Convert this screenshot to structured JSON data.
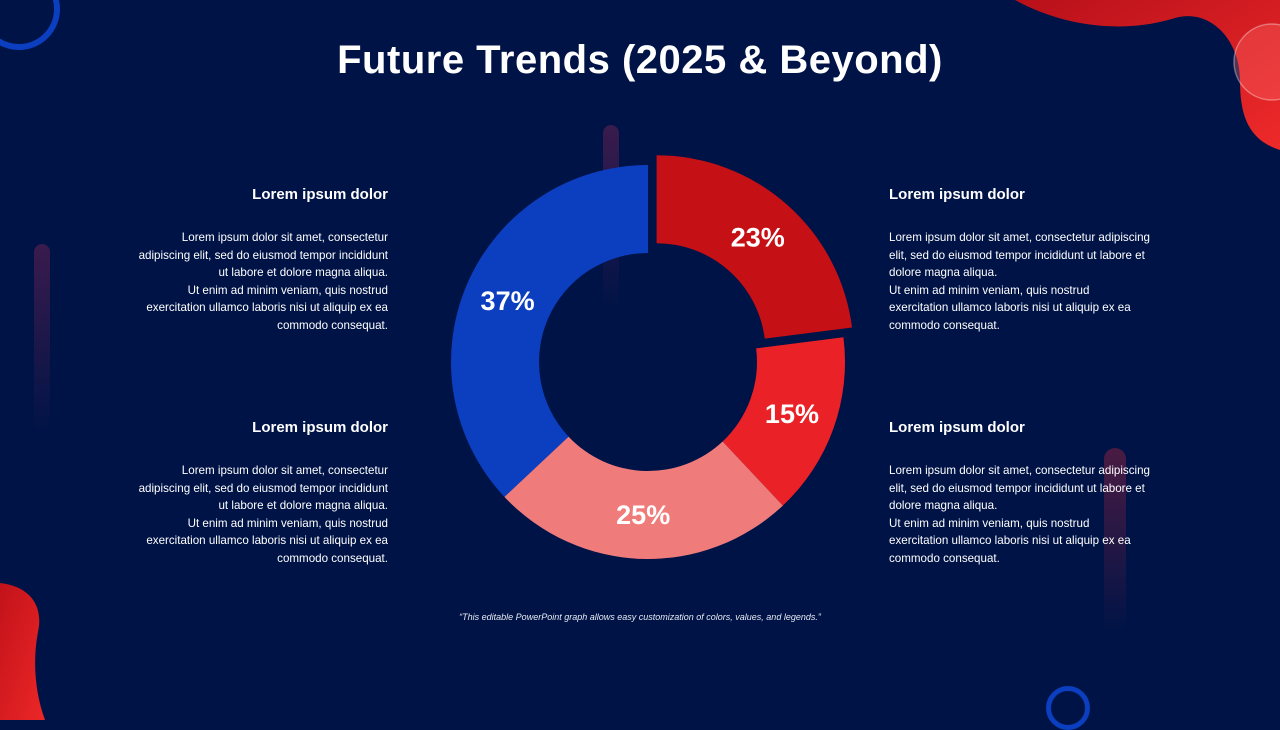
{
  "title": "Future Trends (2025 & Beyond)",
  "blocks": {
    "top_left": {
      "heading": "Lorem ipsum dolor",
      "body": "Lorem ipsum dolor sit amet, consectetur\nadipiscing elit, sed do eiusmod tempor incididunt\nut labore et dolore magna aliqua.\nUt enim ad minim veniam, quis nostrud\nexercitation ullamco laboris nisi ut aliquip ex ea\ncommodo consequat."
    },
    "bottom_left": {
      "heading": "Lorem ipsum dolor",
      "body": "Lorem ipsum dolor sit amet, consectetur\nadipiscing elit, sed do eiusmod tempor incididunt\nut labore et dolore magna aliqua.\nUt enim ad minim veniam, quis nostrud\nexercitation ullamco laboris nisi ut aliquip ex ea\ncommodo consequat."
    },
    "top_right": {
      "heading": "Lorem ipsum dolor",
      "body": "Lorem ipsum dolor sit amet, consectetur adipiscing\nelit, sed do eiusmod tempor incididunt ut labore et\ndolore magna aliqua.\nUt enim ad minim veniam, quis nostrud\nexercitation ullamco laboris nisi ut aliquip ex ea\ncommodo consequat."
    },
    "bottom_right": {
      "heading": "Lorem ipsum dolor",
      "body": "Lorem ipsum dolor sit amet, consectetur adipiscing\nelit, sed do eiusmod tempor incididunt ut labore et\ndolore magna aliqua.\nUt enim ad minim veniam, quis nostrud\nexercitation ullamco laboris nisi ut aliquip ex ea\ncommodo consequat."
    }
  },
  "caption": "“This editable PowerPoint graph allows easy customization of colors, values, and legends.”",
  "colors": {
    "background": "#001346",
    "dark_red": "#c51016",
    "red": "#ea2227",
    "pink": "#f07b7b",
    "blue": "#0b3fc0"
  },
  "chart_data": {
    "type": "pie",
    "variant": "donut",
    "title": "",
    "slices": [
      {
        "value": 23,
        "label": "23%",
        "color": "#c51016",
        "exploded": true
      },
      {
        "value": 15,
        "label": "15%",
        "color": "#ea2227",
        "exploded": false
      },
      {
        "value": 25,
        "label": "25%",
        "color": "#f07b7b",
        "exploded": false
      },
      {
        "value": 37,
        "label": "37%",
        "color": "#0b3fc0",
        "exploded": false
      }
    ]
  }
}
